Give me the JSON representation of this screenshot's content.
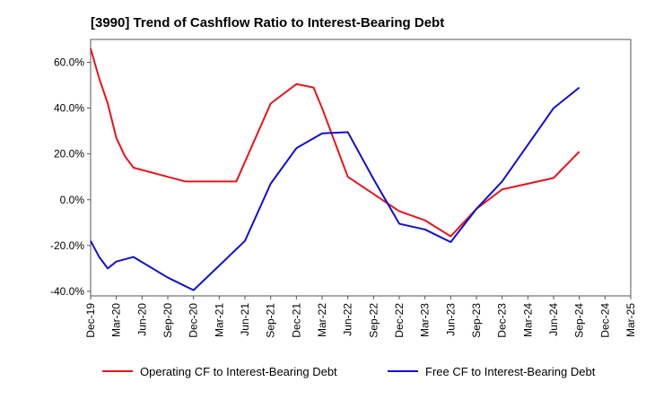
{
  "chart_data": {
    "type": "line",
    "title": "[3990]  Trend of Cashflow Ratio to Interest-Bearing Debt",
    "xlabel": "",
    "ylabel": "",
    "ylim": [
      -42,
      70
    ],
    "yticks": [
      {
        "value": -40,
        "label": "-40.0%"
      },
      {
        "value": -20,
        "label": "-20.0%"
      },
      {
        "value": 0,
        "label": "0.0%"
      },
      {
        "value": 20,
        "label": "20.0%"
      },
      {
        "value": 40,
        "label": "40.0%"
      },
      {
        "value": 60,
        "label": "60.0%"
      }
    ],
    "x_months_range": [
      0,
      63
    ],
    "xticks": [
      {
        "m": 0,
        "label": "Dec-19"
      },
      {
        "m": 3,
        "label": "Mar-20"
      },
      {
        "m": 6,
        "label": "Jun-20"
      },
      {
        "m": 9,
        "label": "Sep-20"
      },
      {
        "m": 12,
        "label": "Dec-20"
      },
      {
        "m": 15,
        "label": "Mar-21"
      },
      {
        "m": 18,
        "label": "Jun-21"
      },
      {
        "m": 21,
        "label": "Sep-21"
      },
      {
        "m": 24,
        "label": "Dec-21"
      },
      {
        "m": 27,
        "label": "Mar-22"
      },
      {
        "m": 30,
        "label": "Jun-22"
      },
      {
        "m": 33,
        "label": "Sep-22"
      },
      {
        "m": 36,
        "label": "Dec-22"
      },
      {
        "m": 39,
        "label": "Mar-23"
      },
      {
        "m": 42,
        "label": "Jun-23"
      },
      {
        "m": 45,
        "label": "Sep-23"
      },
      {
        "m": 48,
        "label": "Dec-23"
      },
      {
        "m": 51,
        "label": "Mar-24"
      },
      {
        "m": 54,
        "label": "Jun-24"
      },
      {
        "m": 57,
        "label": "Sep-24"
      },
      {
        "m": 60,
        "label": "Dec-24"
      },
      {
        "m": 63,
        "label": "Mar-25"
      }
    ],
    "grid": true,
    "legend_position": "bottom",
    "series": [
      {
        "name": "Operating CF to Interest-Bearing Debt",
        "color": "#e8141c",
        "points": [
          [
            0,
            66
          ],
          [
            1,
            53
          ],
          [
            2,
            42
          ],
          [
            3,
            27
          ],
          [
            4,
            19
          ],
          [
            5,
            14
          ],
          [
            9,
            10
          ],
          [
            11,
            8
          ],
          [
            17,
            8
          ],
          [
            21,
            42
          ],
          [
            24,
            50.5
          ],
          [
            26,
            49
          ],
          [
            27,
            40
          ],
          [
            30,
            10
          ],
          [
            36,
            -5
          ],
          [
            39,
            -9
          ],
          [
            42,
            -16
          ],
          [
            45,
            -4
          ],
          [
            48,
            4.5
          ],
          [
            54,
            9.5
          ],
          [
            57,
            21
          ]
        ]
      },
      {
        "name": "Free CF to Interest-Bearing Debt",
        "color": "#1010d0",
        "points": [
          [
            0,
            -18
          ],
          [
            1,
            -25
          ],
          [
            2,
            -30
          ],
          [
            3,
            -27
          ],
          [
            5,
            -25
          ],
          [
            9,
            -34
          ],
          [
            12,
            -39.5
          ],
          [
            18,
            -18
          ],
          [
            21,
            7
          ],
          [
            24,
            22.5
          ],
          [
            27,
            29
          ],
          [
            30,
            29.5
          ],
          [
            33,
            9
          ],
          [
            36,
            -10.5
          ],
          [
            39,
            -13
          ],
          [
            42,
            -18.5
          ],
          [
            45,
            -4
          ],
          [
            48,
            8
          ],
          [
            54,
            40
          ],
          [
            57,
            49
          ]
        ]
      }
    ]
  }
}
